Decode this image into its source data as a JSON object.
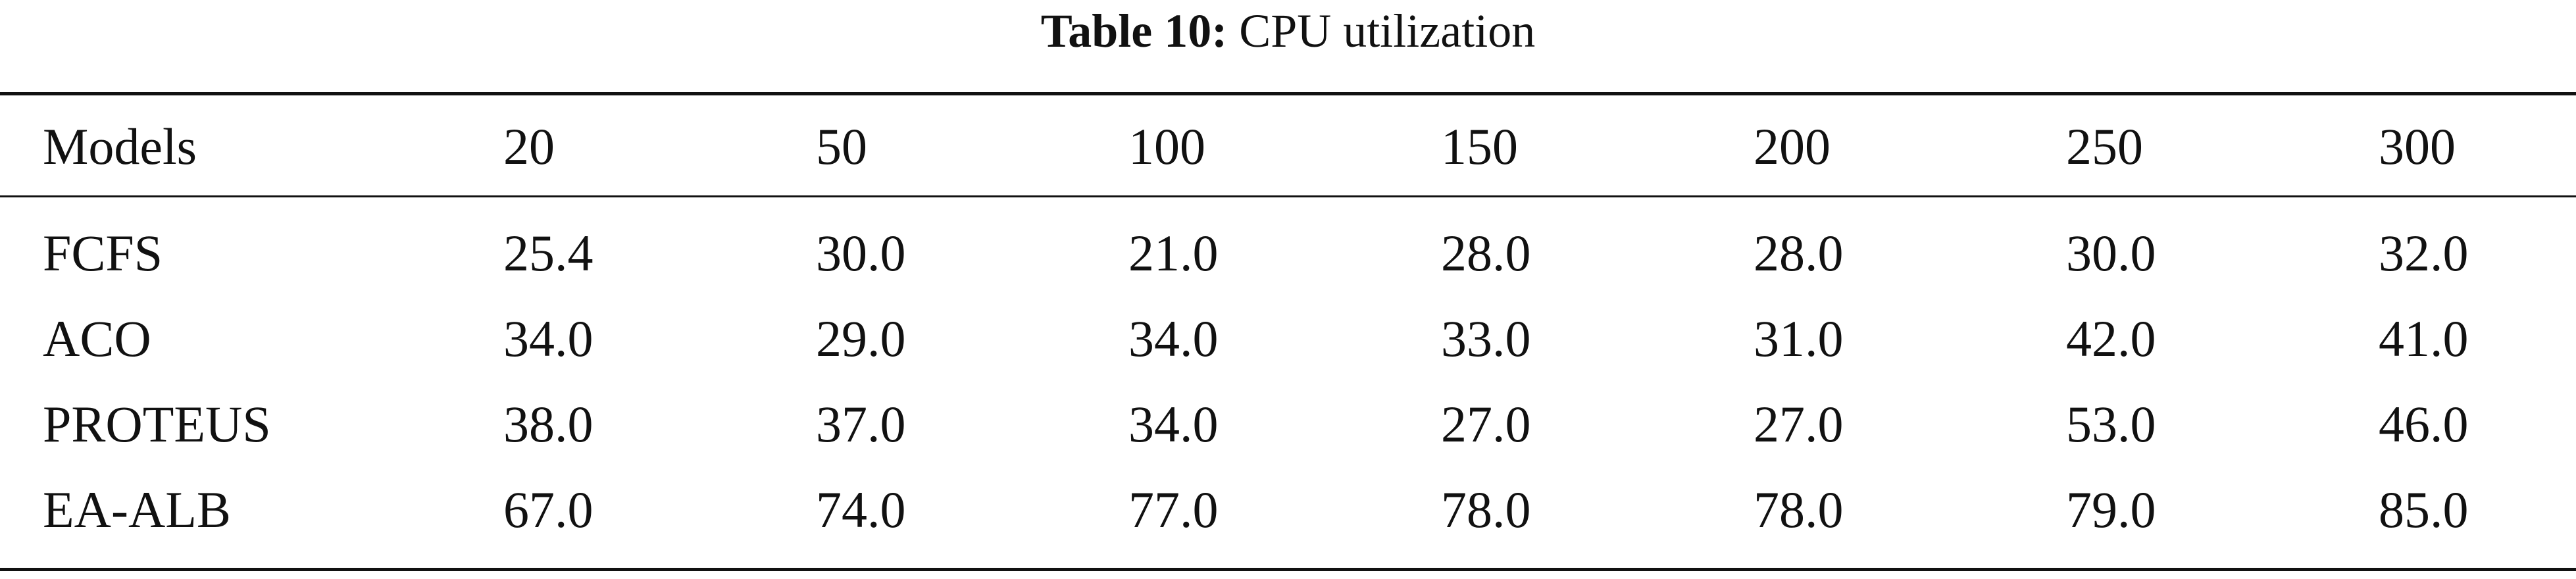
{
  "caption": {
    "label": "Table 10:",
    "title": "CPU utilization"
  },
  "table": {
    "columns": [
      "Models",
      "20",
      "50",
      "100",
      "150",
      "200",
      "250",
      "300"
    ],
    "rows": [
      [
        "FCFS",
        "25.4",
        "30.0",
        "21.0",
        "28.0",
        "28.0",
        "30.0",
        "32.0"
      ],
      [
        "ACO",
        "34.0",
        "29.0",
        "34.0",
        "33.0",
        "31.0",
        "42.0",
        "41.0"
      ],
      [
        "PROTEUS",
        "38.0",
        "37.0",
        "34.0",
        "27.0",
        "27.0",
        "53.0",
        "46.0"
      ],
      [
        "EA-ALB",
        "67.0",
        "74.0",
        "77.0",
        "78.0",
        "78.0",
        "79.0",
        "85.0"
      ]
    ]
  }
}
